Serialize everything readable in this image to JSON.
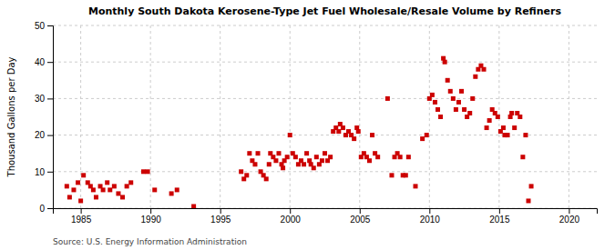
{
  "chart_data": {
    "type": "scatter",
    "title": "Monthly South Dakota Kerosene-Type Jet Fuel Wholesale/Resale Volume by Refiners",
    "ylabel": "Thousand Gallons per Day",
    "annotation": "Source: U.S. Energy Information Administration",
    "color": "#cc0000",
    "marker": "square",
    "grid": true,
    "xlim": [
      1983,
      2022
    ],
    "ylim": [
      0,
      50
    ],
    "xticks": [
      1985,
      1990,
      1995,
      2000,
      2005,
      2010,
      2015,
      2020
    ],
    "yticks": [
      0,
      10,
      20,
      30,
      40,
      50
    ],
    "x": [
      1984.0,
      1984.2,
      1984.5,
      1984.8,
      1985.0,
      1985.2,
      1985.5,
      1985.7,
      1985.9,
      1986.1,
      1986.4,
      1986.6,
      1986.9,
      1987.1,
      1987.4,
      1987.7,
      1988.0,
      1988.3,
      1988.6,
      1989.5,
      1989.8,
      1990.3,
      1991.5,
      1991.9,
      1993.1,
      1996.5,
      1996.7,
      1996.9,
      1997.1,
      1997.3,
      1997.5,
      1997.7,
      1997.9,
      1998.1,
      1998.3,
      1998.5,
      1998.6,
      1998.8,
      1999.0,
      1999.2,
      1999.4,
      1999.5,
      1999.6,
      1999.8,
      2000.0,
      2000.2,
      2000.4,
      2000.6,
      2000.8,
      2001.0,
      2001.2,
      2001.4,
      2001.5,
      2001.7,
      2001.9,
      2002.1,
      2002.3,
      2002.5,
      2002.7,
      2002.9,
      2003.1,
      2003.3,
      2003.5,
      2003.6,
      2003.8,
      2004.0,
      2004.2,
      2004.4,
      2004.6,
      2004.8,
      2004.9,
      2005.1,
      2005.3,
      2005.5,
      2005.7,
      2005.9,
      2006.1,
      2006.3,
      2007.0,
      2007.3,
      2007.5,
      2007.7,
      2007.9,
      2008.1,
      2008.3,
      2008.5,
      2009.0,
      2009.5,
      2009.8,
      2010.0,
      2010.2,
      2010.4,
      2010.6,
      2010.8,
      2011.0,
      2011.1,
      2011.3,
      2011.5,
      2011.7,
      2011.9,
      2012.1,
      2012.3,
      2012.5,
      2012.7,
      2012.9,
      2013.1,
      2013.3,
      2013.5,
      2013.7,
      2013.9,
      2014.1,
      2014.3,
      2014.5,
      2014.7,
      2014.9,
      2015.1,
      2015.3,
      2015.4,
      2015.6,
      2015.8,
      2015.9,
      2016.1,
      2016.3,
      2016.5,
      2016.7,
      2016.9,
      2017.1,
      2017.3
    ],
    "values": [
      6,
      3,
      5,
      7,
      2,
      9,
      7,
      6,
      5,
      3,
      6,
      5,
      7,
      5,
      6,
      4,
      3,
      6,
      7,
      10,
      10,
      5,
      4,
      5,
      0.5,
      10,
      8,
      9,
      15,
      13,
      12,
      15,
      10,
      9,
      8,
      12,
      15,
      14,
      13,
      15,
      12,
      11,
      13,
      14,
      20,
      15,
      14,
      12,
      13,
      12,
      15,
      13,
      12,
      11,
      14,
      12,
      13,
      15,
      13,
      14,
      21,
      22,
      21,
      23,
      22,
      20,
      21,
      20,
      19,
      22,
      21,
      14,
      15,
      14,
      13,
      20,
      15,
      14,
      30,
      9,
      14,
      15,
      14,
      9,
      9,
      14,
      6,
      19,
      20,
      30,
      31,
      29,
      27,
      25,
      41,
      40,
      35,
      32,
      30,
      27,
      29,
      32,
      27,
      25,
      26,
      30,
      36,
      38,
      39,
      38,
      22,
      24,
      27,
      26,
      25,
      21,
      22,
      20,
      20,
      25,
      26,
      22,
      26,
      25,
      14,
      20,
      2,
      6
    ]
  }
}
